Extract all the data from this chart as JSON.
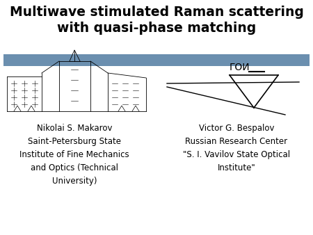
{
  "title_line1": "Multiwave stimulated Raman scattering",
  "title_line2": "with quasi-phase matching",
  "title_fontsize": 13.5,
  "title_fontweight": "bold",
  "banner_color": "#6b8faf",
  "left_author_text": "Nikolai S. Makarov\nSaint-Petersburg State\nInstitute of Fine Mechanics\nand Optics (Technical\nUniversity)",
  "right_author_text": "Victor G. Bespalov\nRussian Research Center\n\"S. I. Vavilov State Optical\nInstitute\"",
  "author_fontsize": 8.5,
  "goi_label": "ГОИ",
  "background_color": "#ffffff"
}
